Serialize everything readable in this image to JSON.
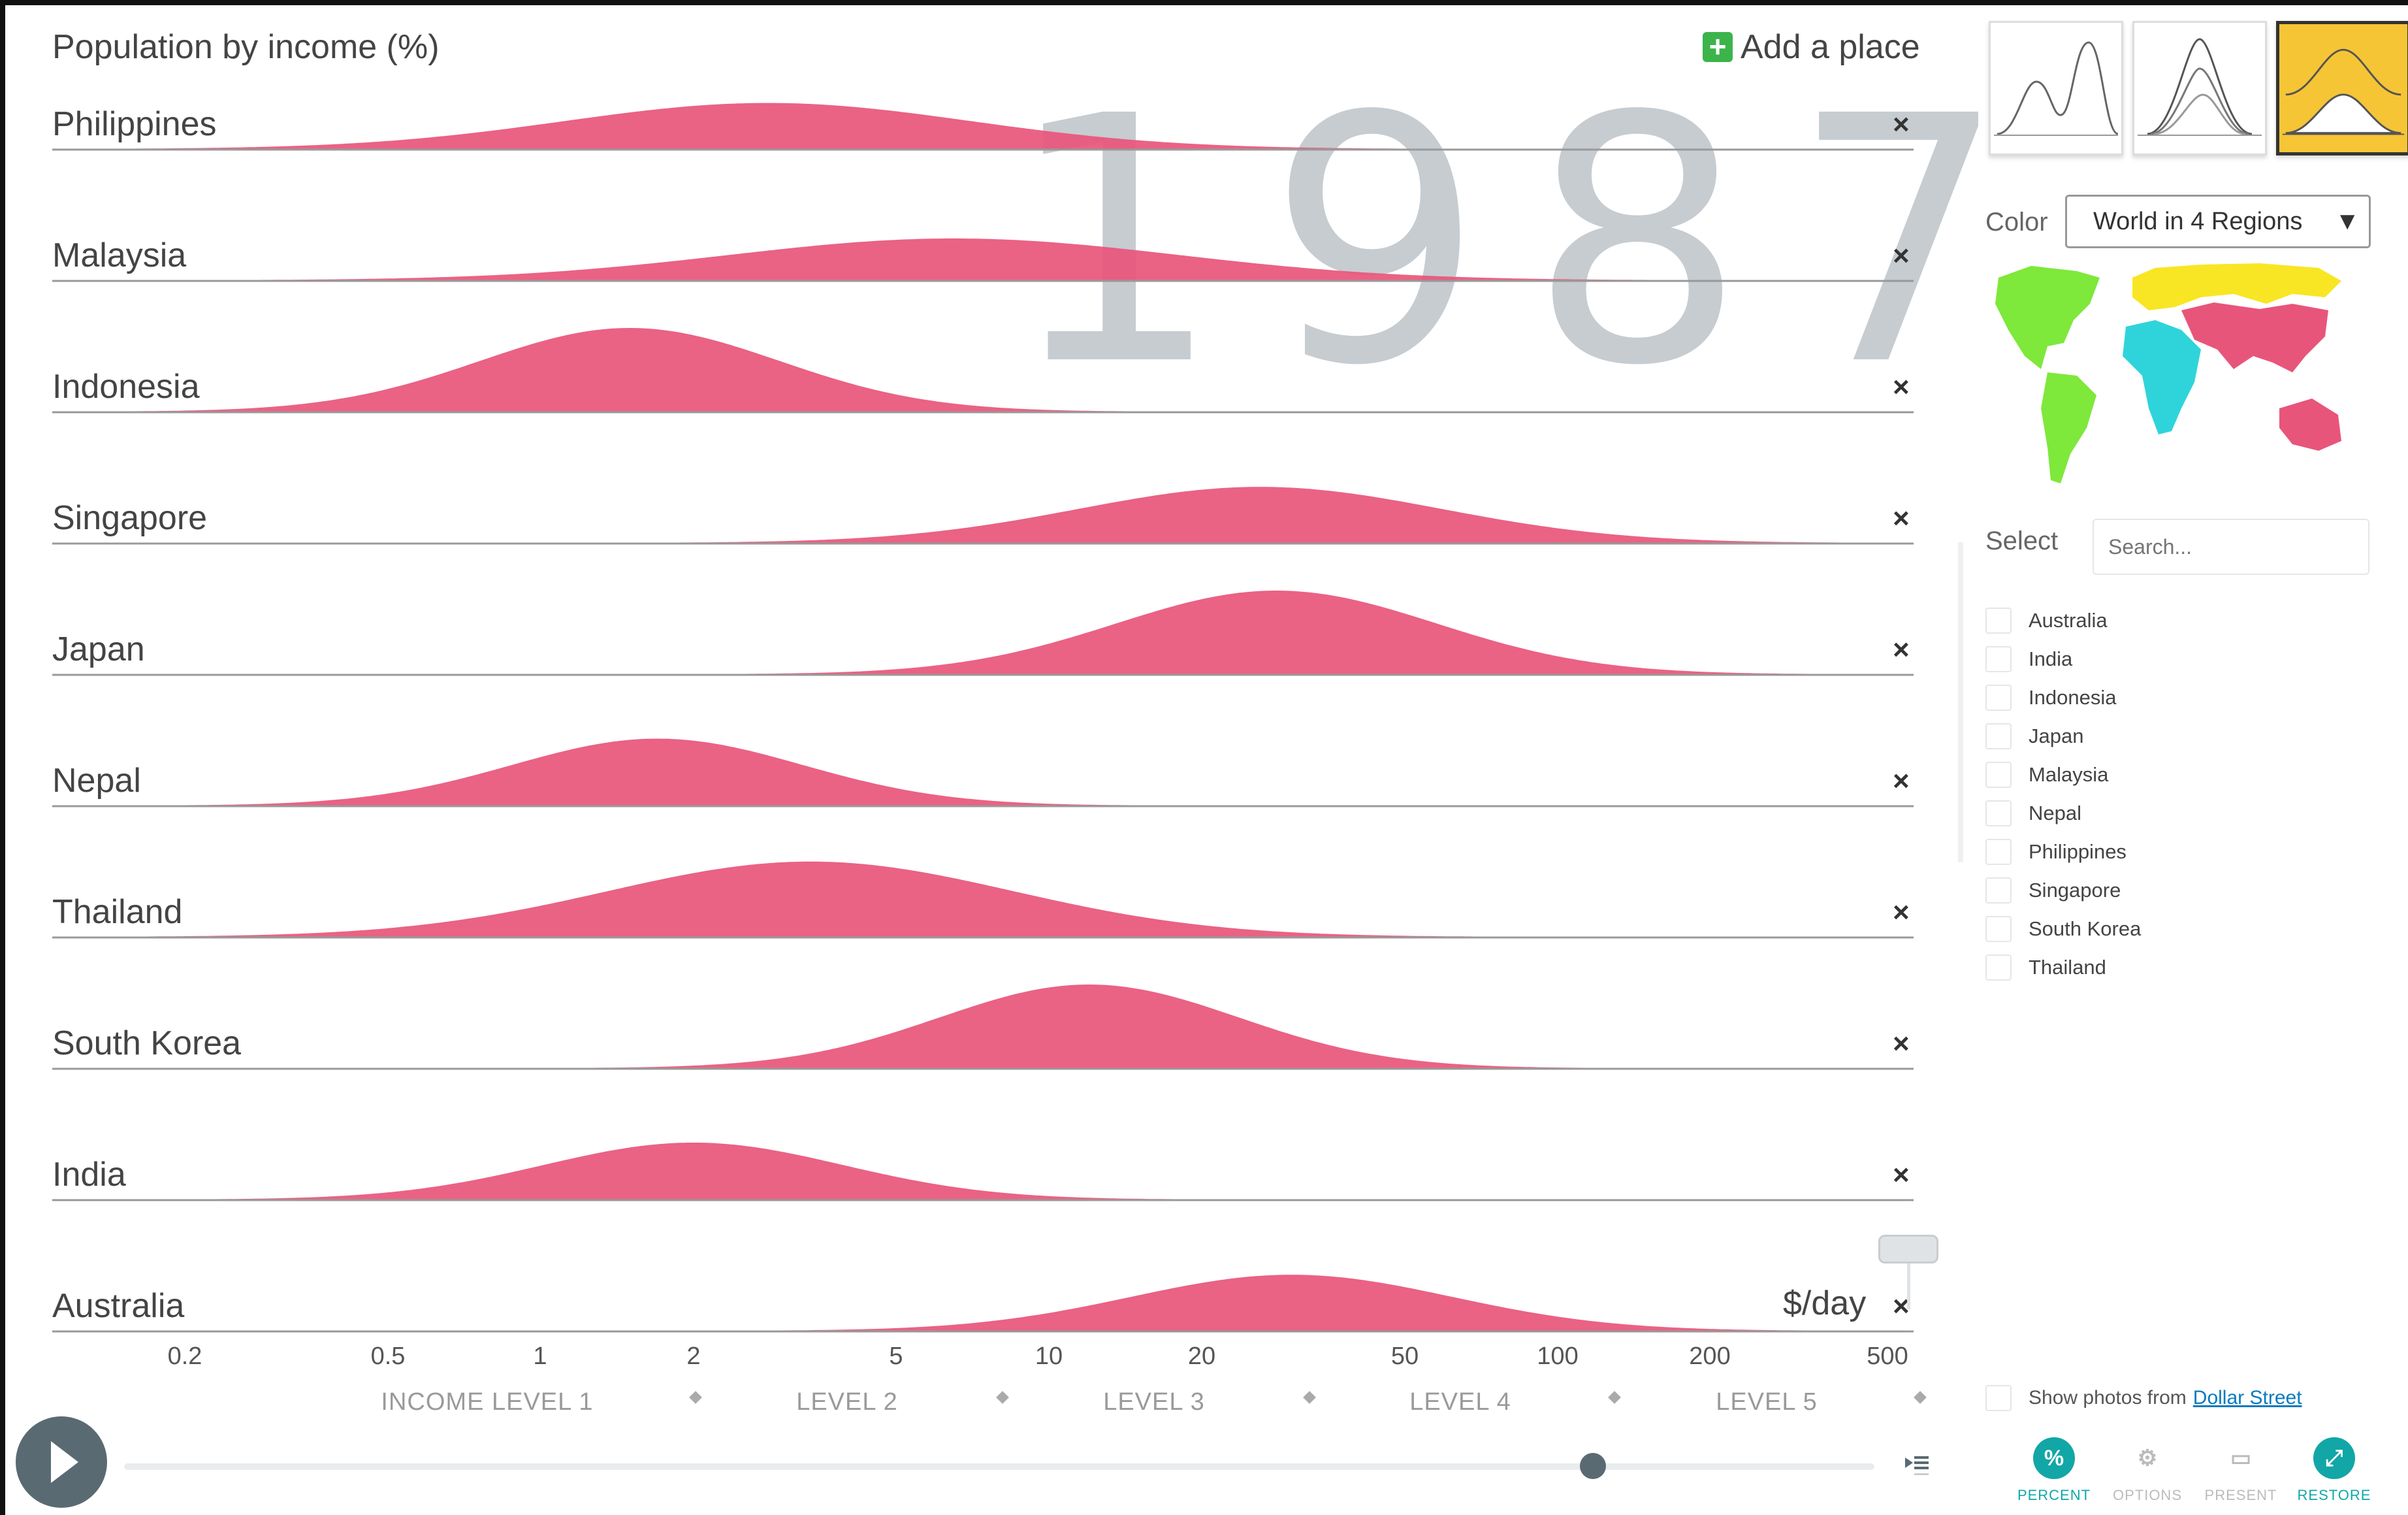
{
  "chart_panel": {
    "title": "Population by income (%)",
    "add_place": "Add a place",
    "year": "1987",
    "unit_label": "$/day",
    "close_glyph": "×",
    "accent_color": "#e8557a",
    "axis_ticks": [
      "0.2",
      "0.5",
      "1",
      "2",
      "5",
      "10",
      "20",
      "50",
      "100",
      "200",
      "500"
    ],
    "income_levels": [
      "INCOME LEVEL 1",
      "LEVEL 2",
      "LEVEL 3",
      "LEVEL 4",
      "LEVEL 5"
    ]
  },
  "chart_data": {
    "type": "area",
    "title": "Population by income (%)",
    "x_scale": "log",
    "xlim": [
      0.12,
      600
    ],
    "xlabel": "$/day",
    "series": [
      {
        "name": "Philippines",
        "peak_income": 2.8,
        "spread": 0.95,
        "relative_height": 0.55
      },
      {
        "name": "Malaysia",
        "peak_income": 6.5,
        "spread": 1.05,
        "relative_height": 0.5
      },
      {
        "name": "Indonesia",
        "peak_income": 1.5,
        "spread": 0.7,
        "relative_height": 1.0
      },
      {
        "name": "Singapore",
        "peak_income": 26,
        "spread": 0.85,
        "relative_height": 0.67
      },
      {
        "name": "Japan",
        "peak_income": 28,
        "spread": 0.75,
        "relative_height": 1.0
      },
      {
        "name": "Nepal",
        "peak_income": 1.7,
        "spread": 0.68,
        "relative_height": 0.8
      },
      {
        "name": "Thailand",
        "peak_income": 3.4,
        "spread": 0.95,
        "relative_height": 0.9
      },
      {
        "name": "South Korea",
        "peak_income": 12,
        "spread": 0.7,
        "relative_height": 1.0
      },
      {
        "name": "India",
        "peak_income": 2.0,
        "spread": 0.7,
        "relative_height": 0.68
      },
      {
        "name": "Australia",
        "peak_income": 30,
        "spread": 0.75,
        "relative_height": 0.67
      }
    ]
  },
  "sidebar": {
    "chart_modes": [
      "mountain-outline-icon",
      "stacked-mountains-icon",
      "filled-mountains-icon"
    ],
    "active_mode": 2,
    "color_label": "Color",
    "color_value": "World in 4 Regions",
    "region_colors": [
      "#7ee83b",
      "#2fd4db",
      "#f8e624",
      "#e8557a"
    ],
    "select_label": "Select",
    "search_placeholder": "Search...",
    "countries": [
      "Australia",
      "India",
      "Indonesia",
      "Japan",
      "Malaysia",
      "Nepal",
      "Philippines",
      "Singapore",
      "South Korea",
      "Thailand"
    ],
    "photos_text": "Show photos from",
    "photos_link": "Dollar Street",
    "buttons": [
      {
        "label": "PERCENT",
        "glyph": "%",
        "active": true
      },
      {
        "label": "OPTIONS",
        "glyph": "⚙",
        "active": false
      },
      {
        "label": "PRESENT",
        "glyph": "▭",
        "active": false
      },
      {
        "label": "RESTORE",
        "glyph": "⤢",
        "active": true
      }
    ]
  }
}
